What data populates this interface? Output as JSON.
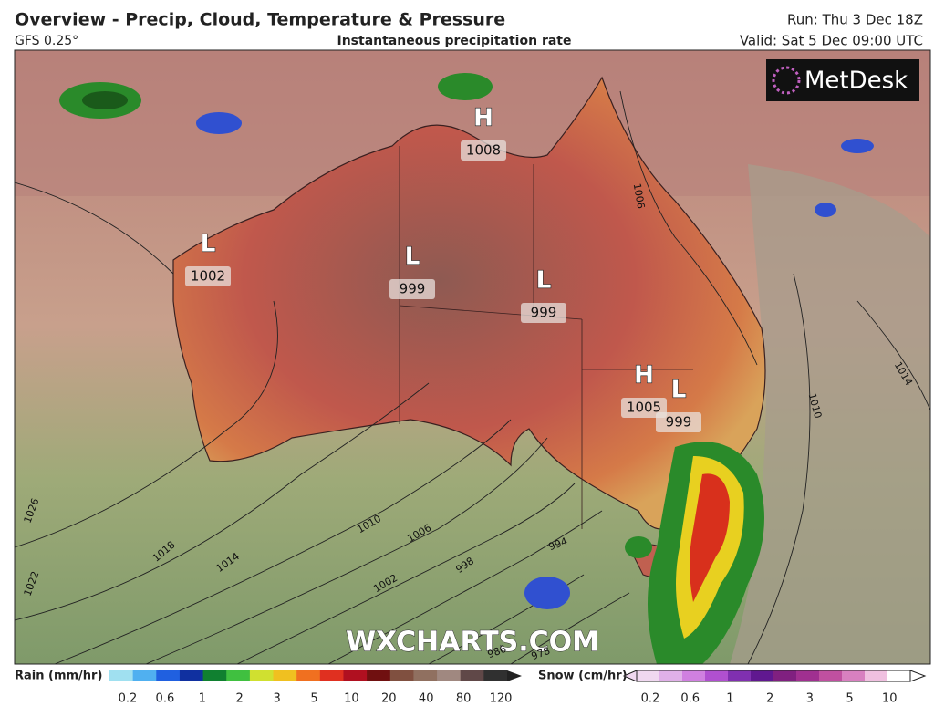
{
  "header": {
    "title": "Overview - Precip, Cloud, Temperature & Pressure",
    "model": "GFS 0.25°",
    "subtitle": "Instantaneous precipitation rate",
    "run": "Run: Thu 3 Dec 18Z",
    "valid": "Valid: Sat 5 Dec 09:00 UTC"
  },
  "logo": "MetDesk",
  "watermark": "WXCHARTS.COM",
  "pressure_centers": [
    {
      "letter": "H",
      "value": "1008"
    },
    {
      "letter": "L",
      "value": "1002"
    },
    {
      "letter": "L",
      "value": "999"
    },
    {
      "letter": "L",
      "value": "999"
    },
    {
      "letter": "H",
      "value": "1005"
    },
    {
      "letter": "L",
      "value": "999"
    }
  ],
  "isobar_labels": [
    "1006",
    "1014",
    "1010",
    "1026",
    "1022",
    "1018",
    "1014",
    "1010",
    "1006",
    "1002",
    "998",
    "994",
    "986",
    "978"
  ],
  "legend": {
    "rain_title": "Rain (mm/hr)",
    "rain_labels": [
      "0.2",
      "0.6",
      "1",
      "2",
      "3",
      "5",
      "10",
      "20",
      "40",
      "80",
      "120"
    ],
    "snow_title": "Snow (cm/hr)",
    "snow_labels": [
      "0.2",
      "0.6",
      "1",
      "2",
      "3",
      "5",
      "10"
    ]
  }
}
